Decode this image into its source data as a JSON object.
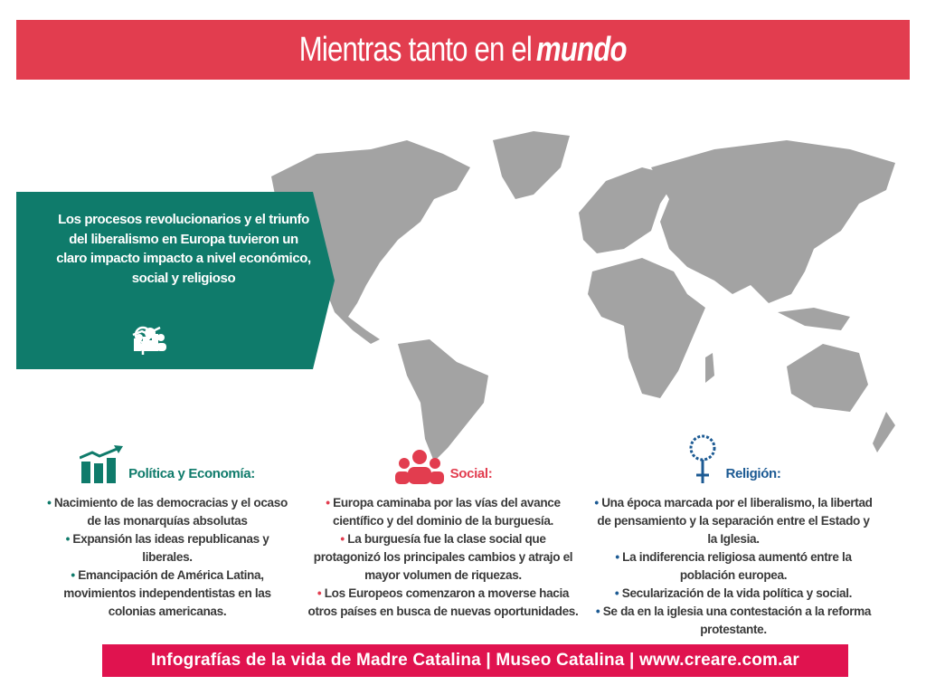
{
  "header": {
    "title": "Mientras tanto en el",
    "title_emphasis": "mundo"
  },
  "panel": {
    "text": "Los procesos revolucionarios y el triunfo del liberalismo en Europa tuvieron un claro impacto impacto a nivel económico, social y religioso",
    "icons": [
      "chart-growth-icon",
      "people-icon",
      "rosary-icon"
    ]
  },
  "colors": {
    "header": "#e23d4f",
    "teal": "#0f7b6b",
    "red": "#e23d4f",
    "blue": "#1c5a93",
    "map": "#a3a3a3",
    "footer": "#e0134f"
  },
  "columns": [
    {
      "title": "Política y Economía:",
      "icon": "chart-growth-icon",
      "items": [
        "Nacimiento de las democracias y el ocaso de las monarquías absolutas",
        "Expansión las ideas republicanas y liberales.",
        "Emancipación de América Latina, movimientos independentistas en las colonias americanas."
      ]
    },
    {
      "title": "Social:",
      "icon": "people-icon",
      "items": [
        "Europa caminaba por las vías del avance científico y del dominio de la burguesía.",
        "La burguesía fue la clase social que protagonizó los principales cambios y atrajo el mayor volumen de riquezas.",
        "Los Europeos comenzaron a moverse hacia otros países en busca de nuevas oportunidades."
      ]
    },
    {
      "title": "Religión:",
      "icon": "rosary-icon",
      "items": [
        "Una época marcada por el liberalismo, la libertad de pensamiento y la separación entre el Estado y la Iglesia.",
        "La indiferencia religiosa aumentó entre la población europea.",
        "Secularización de la vida política y social.",
        "Se da en la iglesia una contestación a  la reforma protestante."
      ]
    }
  ],
  "footer": {
    "text": "Infografías de la vida de Madre Catalina | Museo Catalina | www.creare.com.ar"
  }
}
